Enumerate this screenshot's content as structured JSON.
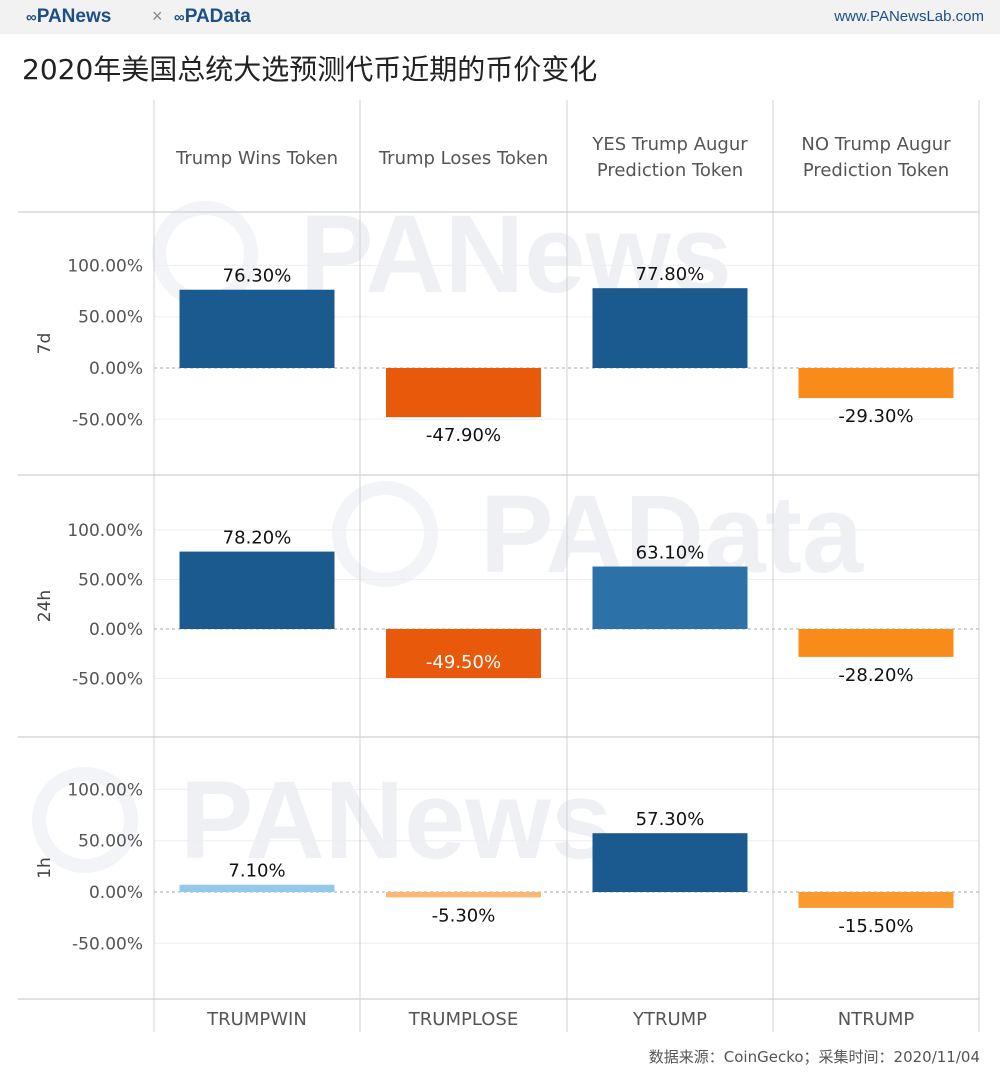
{
  "header": {
    "brand_left": "PANews",
    "separator": "×",
    "brand_right": "PAData",
    "url": "www.PANewsLab.com"
  },
  "title": "2020年美国总统大选预测代币近期的币价变化",
  "source": "数据来源：CoinGecko；采集时间：2020/11/04",
  "watermarks": [
    "PANews",
    "PAData",
    "PANews"
  ],
  "chart_data": {
    "type": "bar",
    "layout": "small-multiples grid (rows = time window, columns = token)",
    "columns": [
      {
        "header": "Trump Wins Token",
        "symbol": "TRUMPWIN"
      },
      {
        "header": "Trump Loses Token",
        "symbol": "TRUMPLOSE"
      },
      {
        "header": "YES Trump Augur Prediction Token",
        "symbol": "YTRUMP"
      },
      {
        "header": "NO Trump Augur Prediction Token",
        "symbol": "NTRUMP"
      }
    ],
    "rows": [
      {
        "label": "7d",
        "values": [
          76.3,
          -47.9,
          77.8,
          -29.3
        ],
        "labels": [
          "76.30%",
          "-47.90%",
          "77.80%",
          "-29.30%"
        ],
        "colors": [
          "#1b5a8e",
          "#e8590c",
          "#1b5a8e",
          "#f98b1a"
        ]
      },
      {
        "label": "24h",
        "values": [
          78.2,
          -49.5,
          63.1,
          -28.2
        ],
        "labels": [
          "78.20%",
          "-49.50%",
          "63.10%",
          "-28.20%"
        ],
        "colors": [
          "#1b5a8e",
          "#e8590c",
          "#2c72a9",
          "#f98b1a"
        ]
      },
      {
        "label": "1h",
        "values": [
          7.1,
          -5.3,
          57.3,
          -15.5
        ],
        "labels": [
          "7.10%",
          "-5.30%",
          "57.30%",
          "-15.50%"
        ],
        "colors": [
          "#92c8e8",
          "#fbb776",
          "#1b5a8e",
          "#f99a2e"
        ]
      }
    ],
    "y_ticks": [
      100,
      50,
      0,
      -50
    ],
    "y_tick_labels": [
      "100.00%",
      "50.00%",
      "0.00%",
      "-50.00%"
    ],
    "ylim": [
      -60,
      110
    ],
    "grid": true,
    "legend": "none"
  }
}
